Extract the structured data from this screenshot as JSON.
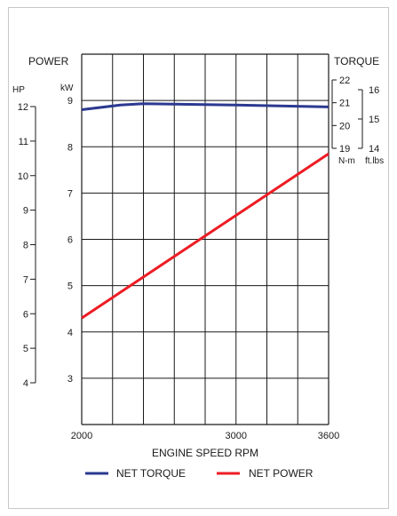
{
  "chart_data": {
    "type": "line",
    "xlabel": "ENGINE SPEED RPM",
    "x_ticks": [
      2000,
      3000,
      3600
    ],
    "xlim": [
      2000,
      3600
    ],
    "left_title": "POWER",
    "right_title": "TORQUE",
    "kw_axis": {
      "unit": "kW",
      "ticks": [
        3,
        4,
        5,
        6,
        7,
        8,
        9
      ],
      "ylim": [
        2,
        10
      ]
    },
    "hp_axis": {
      "unit": "HP",
      "ticks": [
        4,
        5,
        6,
        7,
        8,
        9,
        10,
        11,
        12
      ]
    },
    "nm_axis": {
      "unit": "N-m",
      "ticks": [
        19,
        20,
        21,
        22
      ]
    },
    "ftlbs_axis": {
      "unit": "ft.lbs",
      "ticks": [
        14,
        15,
        16
      ]
    },
    "series": [
      {
        "name": "NET TORQUE",
        "color": "#2b3990",
        "axis": "kw",
        "x": [
          2000,
          2250,
          2400,
          3000,
          3600
        ],
        "y": [
          8.8,
          8.9,
          8.93,
          8.9,
          8.86
        ]
      },
      {
        "name": "NET POWER",
        "color": "#ed1c24",
        "axis": "kw",
        "x": [
          2000,
          3600
        ],
        "y": [
          4.3,
          7.85
        ]
      }
    ],
    "legend_position": "bottom",
    "grid": true
  }
}
